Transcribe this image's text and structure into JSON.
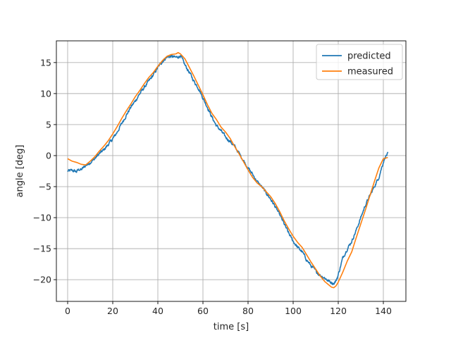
{
  "chart_data": {
    "type": "line",
    "title": "",
    "xlabel": "time [s]",
    "ylabel": "angle [deg]",
    "xlim": [
      -5,
      150
    ],
    "ylim": [
      -23.5,
      18.5
    ],
    "xticks": [
      0,
      20,
      40,
      60,
      80,
      100,
      120,
      140
    ],
    "yticks": [
      -20,
      -15,
      -10,
      -5,
      0,
      5,
      10,
      15
    ],
    "xtick_labels": [
      "0",
      "20",
      "40",
      "60",
      "80",
      "100",
      "120",
      "140"
    ],
    "ytick_labels": [
      "−20",
      "−15",
      "−10",
      "−5",
      "0",
      "5",
      "10",
      "15"
    ],
    "grid": true,
    "legend_position": "top-right",
    "series": [
      {
        "name": "predicted",
        "color": "#1f77b4",
        "noisy": true,
        "x": [
          0,
          2,
          4,
          5,
          6,
          8,
          10,
          12,
          14,
          16,
          18,
          20,
          22,
          24,
          26,
          28,
          30,
          32,
          34,
          36,
          38,
          40,
          42,
          44,
          46,
          48,
          50,
          52,
          54,
          56,
          58,
          60,
          62,
          64,
          66,
          68,
          70,
          72,
          74,
          76,
          78,
          80,
          82,
          84,
          86,
          88,
          90,
          92,
          94,
          96,
          98,
          100,
          102,
          104,
          106,
          108,
          110,
          112,
          114,
          116,
          118,
          119,
          120,
          122,
          124,
          126,
          128,
          130,
          132,
          134,
          136,
          138,
          140,
          141,
          142
        ],
        "y": [
          -2.5,
          -2.4,
          -2.6,
          -2.2,
          -2.3,
          -1.6,
          -1.1,
          -0.5,
          0.3,
          0.9,
          1.8,
          2.7,
          3.8,
          5.2,
          6.5,
          7.8,
          8.8,
          10.0,
          11.0,
          12.0,
          13.0,
          14.2,
          15.2,
          15.9,
          16.0,
          15.8,
          16.1,
          14.6,
          13.4,
          12.0,
          10.9,
          9.3,
          7.8,
          6.2,
          4.8,
          4.0,
          3.0,
          2.3,
          1.5,
          0.4,
          -0.8,
          -2.0,
          -3.0,
          -4.2,
          -5.0,
          -6.0,
          -7.0,
          -8.2,
          -9.5,
          -11.0,
          -12.5,
          -13.8,
          -14.8,
          -15.5,
          -16.8,
          -17.8,
          -18.6,
          -19.3,
          -19.7,
          -20.3,
          -20.6,
          -20.2,
          -19.2,
          -16.5,
          -15.0,
          -13.8,
          -12.0,
          -10.0,
          -8.0,
          -6.5,
          -5.0,
          -3.5,
          -1.0,
          -0.1,
          0.3
        ]
      },
      {
        "name": "measured",
        "color": "#ff7f0e",
        "noisy": false,
        "x": [
          0,
          2,
          4,
          6,
          8,
          10,
          12,
          14,
          16,
          18,
          20,
          22,
          24,
          26,
          28,
          30,
          32,
          34,
          36,
          38,
          40,
          42,
          44,
          46,
          48,
          49,
          50,
          52,
          54,
          56,
          58,
          60,
          62,
          64,
          66,
          68,
          70,
          72,
          74,
          76,
          78,
          80,
          82,
          84,
          86,
          88,
          90,
          92,
          94,
          96,
          98,
          100,
          102,
          104,
          106,
          108,
          110,
          112,
          114,
          116,
          117,
          118,
          119,
          120,
          122,
          124,
          126,
          128,
          130,
          132,
          134,
          136,
          138,
          140,
          142
        ],
        "y": [
          -0.5,
          -0.9,
          -1.1,
          -1.4,
          -1.5,
          -0.9,
          -0.2,
          0.7,
          1.5,
          2.4,
          3.5,
          4.7,
          6.0,
          7.2,
          8.3,
          9.5,
          10.5,
          11.6,
          12.6,
          13.4,
          14.4,
          15.3,
          16.0,
          16.3,
          16.4,
          16.6,
          16.4,
          15.6,
          14.2,
          12.8,
          11.3,
          9.8,
          8.2,
          6.8,
          5.8,
          4.6,
          3.8,
          2.8,
          1.5,
          0.3,
          -1.0,
          -2.3,
          -3.5,
          -4.4,
          -5.0,
          -5.8,
          -6.6,
          -7.7,
          -9.0,
          -10.5,
          -11.8,
          -13.0,
          -14.0,
          -14.8,
          -16.0,
          -17.2,
          -18.3,
          -19.4,
          -20.3,
          -20.9,
          -21.2,
          -21.3,
          -21.0,
          -20.4,
          -18.8,
          -17.0,
          -15.5,
          -13.2,
          -11.0,
          -8.8,
          -6.5,
          -4.2,
          -2.0,
          -0.5,
          -0.3
        ]
      }
    ]
  }
}
